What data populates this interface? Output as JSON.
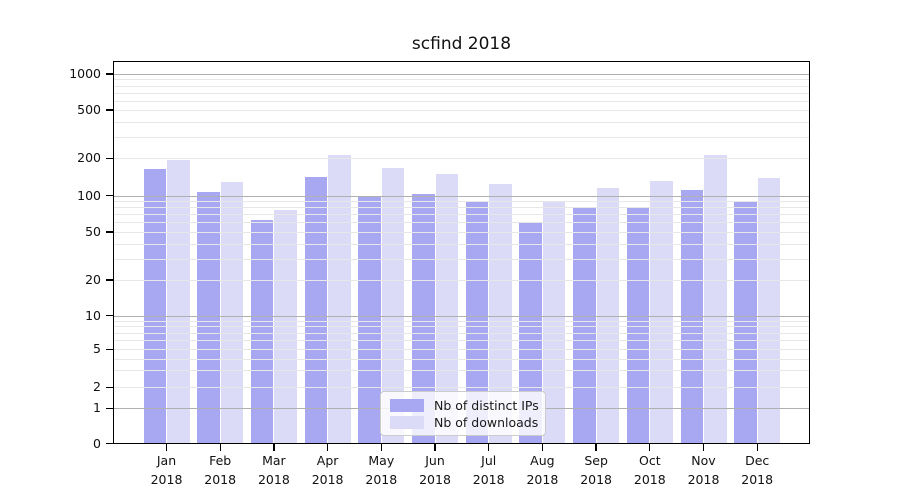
{
  "title": "scfind 2018",
  "colors": {
    "ips_bar": "#a8a8f2",
    "downloads_bar": "#dbdbf8",
    "major_grid": "#b0b0b0",
    "minor_grid": "#e7e7e7",
    "axis": "#000000",
    "legend_border": "#cccccc"
  },
  "legend": {
    "items": [
      {
        "label": "Nb of distinct IPs",
        "series": "ips"
      },
      {
        "label": "Nb of downloads",
        "series": "downloads"
      }
    ]
  },
  "y_axis": {
    "ticks": [
      {
        "value": 1000,
        "label": "1000"
      },
      {
        "value": 500,
        "label": "500"
      },
      {
        "value": 200,
        "label": "200"
      },
      {
        "value": 100,
        "label": "100"
      },
      {
        "value": 50,
        "label": "50"
      },
      {
        "value": 20,
        "label": "20"
      },
      {
        "value": 10,
        "label": "10"
      },
      {
        "value": 5,
        "label": "5"
      },
      {
        "value": 2,
        "label": "2"
      },
      {
        "value": 1,
        "label": "1"
      },
      {
        "value": 0,
        "label": "0"
      }
    ]
  },
  "x_axis": {
    "labels": [
      {
        "line1": "Jan",
        "line2": "2018"
      },
      {
        "line1": "Feb",
        "line2": "2018"
      },
      {
        "line1": "Mar",
        "line2": "2018"
      },
      {
        "line1": "Apr",
        "line2": "2018"
      },
      {
        "line1": "May",
        "line2": "2018"
      },
      {
        "line1": "Jun",
        "line2": "2018"
      },
      {
        "line1": "Jul",
        "line2": "2018"
      },
      {
        "line1": "Aug",
        "line2": "2018"
      },
      {
        "line1": "Sep",
        "line2": "2018"
      },
      {
        "line1": "Oct",
        "line2": "2018"
      },
      {
        "line1": "Nov",
        "line2": "2018"
      },
      {
        "line1": "Dec",
        "line2": "2018"
      }
    ]
  },
  "chart_data": {
    "type": "bar",
    "title": "scfind 2018",
    "categories": [
      "Jan 2018",
      "Feb 2018",
      "Mar 2018",
      "Apr 2018",
      "May 2018",
      "Jun 2018",
      "Jul 2018",
      "Aug 2018",
      "Sep 2018",
      "Oct 2018",
      "Nov 2018",
      "Dec 2018"
    ],
    "series": [
      {
        "name": "Nb of distinct IPs",
        "key": "ips",
        "values": [
          165,
          107,
          63,
          142,
          97,
          103,
          91,
          61,
          80,
          79,
          112,
          89
        ]
      },
      {
        "name": "Nb of downloads",
        "key": "downloads",
        "values": [
          195,
          128,
          76,
          213,
          166,
          150,
          124,
          88,
          115,
          131,
          211,
          138
        ]
      }
    ],
    "xlabel": "",
    "ylabel": "",
    "yscale": "symlog",
    "ylim": [
      0,
      1300
    ],
    "yticks": [
      0,
      1,
      2,
      5,
      10,
      20,
      50,
      100,
      200,
      500,
      1000
    ],
    "grid": "horizontal major + log minor, drawn above bars",
    "legend_position": "lower center inside plot"
  }
}
